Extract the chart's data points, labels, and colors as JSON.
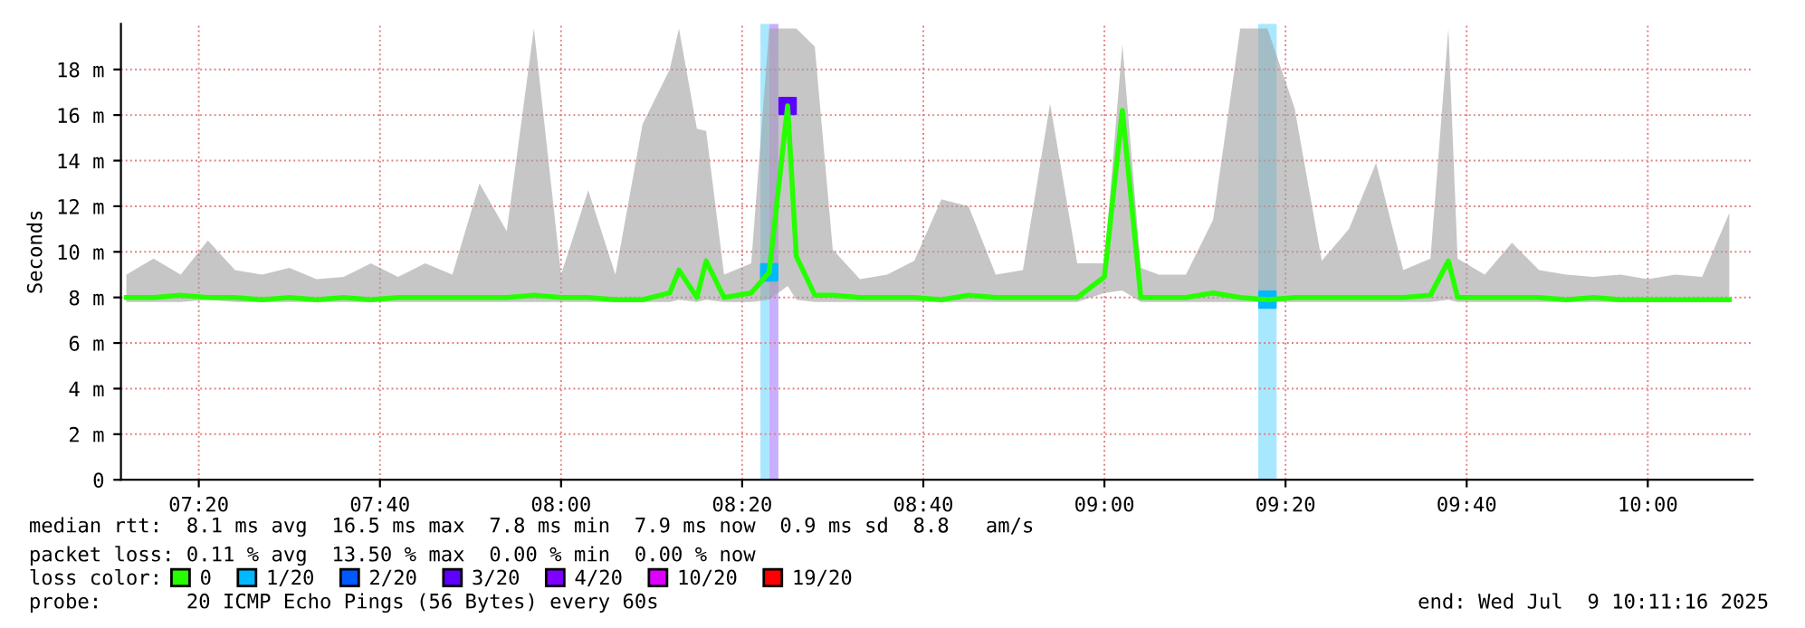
{
  "chart_data": {
    "type": "line",
    "ylabel": "Seconds",
    "x": [
      7.2,
      7.25,
      7.3,
      7.35,
      7.4,
      7.45,
      7.5,
      7.55,
      7.6,
      7.65,
      7.7,
      7.75,
      7.8,
      7.85,
      7.9,
      7.95,
      8.0,
      8.05,
      8.1,
      8.15,
      8.2,
      8.217,
      8.25,
      8.267,
      8.3,
      8.35,
      8.383,
      8.417,
      8.433,
      8.467,
      8.5,
      8.55,
      8.6,
      8.65,
      8.7,
      8.75,
      8.8,
      8.85,
      8.9,
      8.95,
      9.0,
      9.033,
      9.067,
      9.1,
      9.15,
      9.2,
      9.25,
      9.3,
      9.35,
      9.4,
      9.45,
      9.5,
      9.55,
      9.6,
      9.633,
      9.65,
      9.7,
      9.75,
      9.8,
      9.85,
      9.9,
      9.95,
      10.0,
      10.05,
      10.1,
      10.15
    ],
    "series": [
      {
        "name": "0",
        "type": "line",
        "color": "#26ff00",
        "values": [
          8.0,
          8.0,
          8.1,
          8.0,
          8.0,
          7.9,
          8.0,
          7.9,
          8.0,
          7.9,
          8.0,
          8.0,
          8.0,
          8.0,
          8.0,
          8.1,
          8.0,
          8.0,
          7.9,
          7.9,
          8.2,
          9.2,
          8.0,
          9.6,
          8.0,
          8.2,
          9.1,
          16.4,
          9.8,
          8.1,
          8.1,
          8.0,
          8.0,
          8.0,
          7.9,
          8.1,
          8.0,
          8.0,
          8.0,
          8.0,
          8.9,
          16.2,
          8.0,
          8.0,
          8.0,
          8.2,
          8.0,
          7.9,
          8.0,
          8.0,
          8.0,
          8.0,
          8.0,
          8.1,
          9.6,
          8.0,
          8.0,
          8.0,
          8.0,
          7.9,
          8.0,
          7.9,
          7.9,
          7.9,
          7.9,
          7.9
        ],
        "upper": [
          9.0,
          9.7,
          9.0,
          10.5,
          9.2,
          9.0,
          9.3,
          8.8,
          8.9,
          9.5,
          8.9,
          9.5,
          9.0,
          13.0,
          10.9,
          19.8,
          9.0,
          12.7,
          9.0,
          15.6,
          18.0,
          19.8,
          15.4,
          15.3,
          9.0,
          9.5,
          19.8,
          19.8,
          19.8,
          19.0,
          10.1,
          8.8,
          9.0,
          9.6,
          12.3,
          12.0,
          9.0,
          9.2,
          16.5,
          9.5,
          9.5,
          19.1,
          9.3,
          9.0,
          9.0,
          11.4,
          19.8,
          19.8,
          16.3,
          9.6,
          11.0,
          13.9,
          9.2,
          9.7,
          19.8,
          9.7,
          9.0,
          10.4,
          9.2,
          9.0,
          8.9,
          9.0,
          8.8,
          9.0,
          8.9,
          11.7
        ],
        "lower": [
          7.8,
          7.8,
          7.8,
          7.9,
          7.8,
          7.8,
          7.8,
          7.8,
          7.8,
          7.8,
          7.8,
          7.8,
          7.8,
          7.8,
          7.8,
          7.8,
          7.8,
          7.8,
          7.8,
          7.8,
          7.8,
          7.9,
          7.8,
          7.9,
          7.8,
          7.8,
          7.9,
          8.5,
          7.9,
          7.8,
          7.8,
          7.8,
          7.8,
          7.8,
          7.8,
          7.8,
          7.8,
          7.8,
          7.8,
          7.8,
          8.2,
          8.3,
          7.8,
          7.8,
          7.8,
          7.8,
          7.8,
          7.8,
          7.8,
          7.8,
          7.8,
          7.8,
          7.8,
          7.8,
          7.9,
          7.8,
          7.8,
          7.8,
          7.8,
          7.8,
          7.8,
          7.8,
          7.8,
          7.8,
          7.8,
          7.8
        ]
      },
      {
        "name": "1/20",
        "type": "scatter",
        "marker": "square",
        "color": "#00b8ff",
        "x": [
          8.383,
          9.3
        ],
        "values": [
          9.1,
          7.9
        ]
      },
      {
        "name": "2/20",
        "type": "scatter",
        "marker": "square",
        "color": "#0059ff",
        "values": [
          null,
          null,
          null,
          null,
          null,
          null,
          null,
          null,
          null,
          null,
          null,
          null,
          null,
          null,
          null,
          null,
          null,
          null,
          null,
          null,
          null,
          null,
          null,
          null,
          null,
          null,
          null,
          null,
          null,
          null,
          null,
          null,
          null,
          null,
          null,
          null,
          null,
          null,
          null,
          null,
          null,
          null,
          null,
          null,
          null,
          null,
          null,
          null,
          null,
          null,
          null,
          null,
          null,
          null,
          null,
          null,
          null,
          null,
          null,
          null,
          null,
          null,
          null,
          null,
          null,
          null
        ]
      },
      {
        "name": "3/20",
        "type": "scatter",
        "marker": "square",
        "color": "#5e00ff",
        "x": [
          8.417
        ],
        "values": [
          16.4
        ]
      },
      {
        "name": "4/20",
        "type": "scatter",
        "marker": "square",
        "color": "#7e00ff",
        "values": [
          null,
          null,
          null,
          null,
          null,
          null,
          null,
          null,
          null,
          null,
          null,
          null,
          null,
          null,
          null,
          null,
          null,
          null,
          null,
          null,
          null,
          null,
          null,
          null,
          null,
          null,
          null,
          null,
          null,
          null,
          null,
          null,
          null,
          null,
          null,
          null,
          null,
          null,
          null,
          null,
          null,
          null,
          null,
          null,
          null,
          null,
          null,
          null,
          null,
          null,
          null,
          null,
          null,
          null,
          null,
          null,
          null,
          null,
          null,
          null,
          null,
          null,
          null,
          null,
          null,
          null
        ]
      },
      {
        "name": "10/20",
        "type": "scatter",
        "marker": "square",
        "color": "#dd00ff",
        "values": [
          null,
          null,
          null,
          null,
          null,
          null,
          null,
          null,
          null,
          null,
          null,
          null,
          null,
          null,
          null,
          null,
          null,
          null,
          null,
          null,
          null,
          null,
          null,
          null,
          null,
          null,
          null,
          null,
          null,
          null,
          null,
          null,
          null,
          null,
          null,
          null,
          null,
          null,
          null,
          null,
          null,
          null,
          null,
          null,
          null,
          null,
          null,
          null,
          null,
          null,
          null,
          null,
          null,
          null,
          null,
          null,
          null,
          null,
          null,
          null,
          null,
          null,
          null,
          null,
          null,
          null
        ]
      },
      {
        "name": "19/20",
        "type": "scatter",
        "marker": "square",
        "color": "#ff0000",
        "values": [
          null,
          null,
          null,
          null,
          null,
          null,
          null,
          null,
          null,
          null,
          null,
          null,
          null,
          null,
          null,
          null,
          null,
          null,
          null,
          null,
          null,
          null,
          null,
          null,
          null,
          null,
          null,
          null,
          null,
          null,
          null,
          null,
          null,
          null,
          null,
          null,
          null,
          null,
          null,
          null,
          null,
          null,
          null,
          null,
          null,
          null,
          null,
          null,
          null,
          null,
          null,
          null,
          null,
          null,
          null,
          null,
          null,
          null,
          null,
          null,
          null,
          null,
          null,
          null,
          null,
          null
        ]
      }
    ],
    "bands": [
      {
        "axis": "x",
        "from": 8.367,
        "to": 8.383,
        "color": "#a8e8ff"
      },
      {
        "axis": "x",
        "from": 8.383,
        "to": 8.4,
        "color": "#c8b0ff"
      },
      {
        "axis": "x",
        "from": 9.283,
        "to": 9.317,
        "color": "#a8e8ff"
      }
    ],
    "xlim": [
      7.19,
      10.193
    ],
    "xticks": [
      {
        "value": 7.3333,
        "label": "07:20"
      },
      {
        "value": 7.6667,
        "label": "07:40"
      },
      {
        "value": 8.0,
        "label": "08:00"
      },
      {
        "value": 8.3333,
        "label": "08:20"
      },
      {
        "value": 8.6667,
        "label": "08:40"
      },
      {
        "value": 9.0,
        "label": "09:00"
      },
      {
        "value": 9.3333,
        "label": "09:20"
      },
      {
        "value": 9.6667,
        "label": "09:40"
      },
      {
        "value": 10.0,
        "label": "10:00"
      }
    ],
    "ylim": [
      0,
      20
    ],
    "yticks": [
      0,
      {
        "value": 2,
        "label": "2 m"
      },
      {
        "value": 4,
        "label": "4 m"
      },
      {
        "value": 6,
        "label": "6 m"
      },
      {
        "value": 8,
        "label": "8 m"
      },
      {
        "value": 10,
        "label": "10 m"
      },
      {
        "value": 12,
        "label": "12 m"
      },
      {
        "value": 14,
        "label": "14 m"
      },
      {
        "value": 16,
        "label": "16 m"
      },
      {
        "value": 18,
        "label": "18 m"
      }
    ],
    "grid": true,
    "legend": "bottom",
    "legend_title": "loss color:",
    "annotations": [
      "median rtt:  8.1 ms avg  16.5 ms max  7.8 ms min  7.9 ms now  0.9 ms sd  8.8   am/s",
      "packet loss: 0.11 % avg  13.50 % max  0.00 % min  0.00 % now",
      "probe:       20 ICMP Echo Pings (56 Bytes) every 60s",
      "end: Wed Jul  9 10:11:16 2025"
    ]
  }
}
